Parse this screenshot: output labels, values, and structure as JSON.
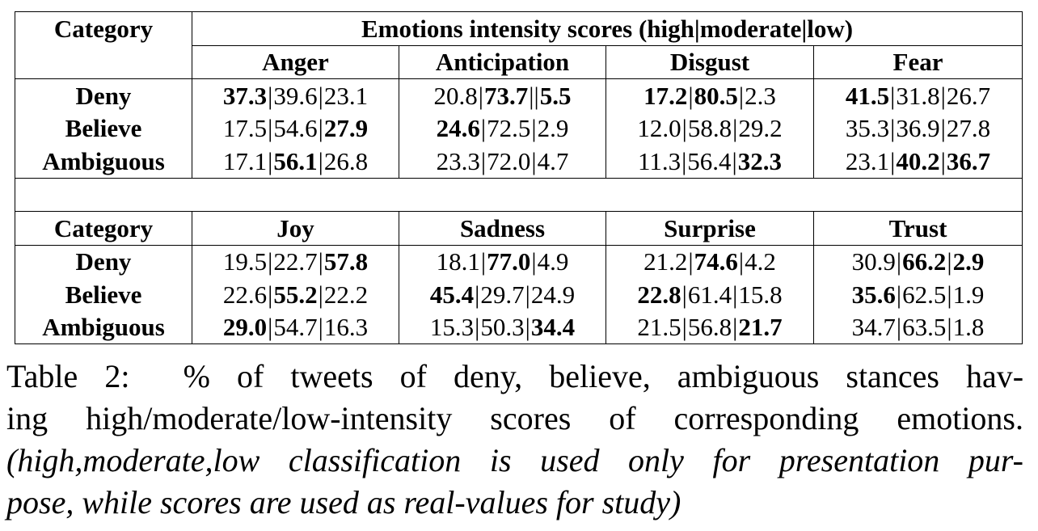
{
  "table": {
    "category_header": "Category",
    "super_header": "Emotions intensity scores (high|moderate|low)",
    "blocks": [
      {
        "emotions": [
          "Anger",
          "Anticipation",
          "Disgust",
          "Fear"
        ],
        "rows": [
          {
            "category": "Deny",
            "cells": [
              {
                "values": [
                  "37.3",
                  "39.6",
                  "23.1"
                ],
                "bold": [
                  true,
                  false,
                  false
                ],
                "seps": [
                  "|",
                  "|"
                ]
              },
              {
                "values": [
                  "20.8",
                  "73.7",
                  "5.5"
                ],
                "bold": [
                  false,
                  true,
                  true
                ],
                "seps": [
                  "|",
                  "||"
                ]
              },
              {
                "values": [
                  "17.2",
                  "80.5",
                  "2.3"
                ],
                "bold": [
                  true,
                  true,
                  false
                ],
                "seps": [
                  "|",
                  "|"
                ]
              },
              {
                "values": [
                  "41.5",
                  "31.8",
                  "26.7"
                ],
                "bold": [
                  true,
                  false,
                  false
                ],
                "seps": [
                  "|",
                  "|"
                ]
              }
            ]
          },
          {
            "category": "Believe",
            "cells": [
              {
                "values": [
                  "17.5",
                  "54.6",
                  "27.9"
                ],
                "bold": [
                  false,
                  false,
                  true
                ],
                "seps": [
                  "|",
                  "|"
                ]
              },
              {
                "values": [
                  "24.6",
                  "72.5",
                  "2.9"
                ],
                "bold": [
                  true,
                  false,
                  false
                ],
                "seps": [
                  "|",
                  "|"
                ]
              },
              {
                "values": [
                  "12.0",
                  "58.8",
                  "29.2"
                ],
                "bold": [
                  false,
                  false,
                  false
                ],
                "seps": [
                  "|",
                  "|"
                ]
              },
              {
                "values": [
                  "35.3",
                  "36.9",
                  "27.8"
                ],
                "bold": [
                  false,
                  false,
                  false
                ],
                "seps": [
                  "|",
                  "|"
                ]
              }
            ]
          },
          {
            "category": "Ambiguous",
            "cells": [
              {
                "values": [
                  "17.1",
                  "56.1",
                  "26.8"
                ],
                "bold": [
                  false,
                  true,
                  false
                ],
                "seps": [
                  "|",
                  "|"
                ]
              },
              {
                "values": [
                  "23.3",
                  "72.0",
                  "4.7"
                ],
                "bold": [
                  false,
                  false,
                  false
                ],
                "seps": [
                  "|",
                  "|"
                ]
              },
              {
                "values": [
                  "11.3",
                  "56.4",
                  "32.3"
                ],
                "bold": [
                  false,
                  false,
                  true
                ],
                "seps": [
                  "|",
                  "|"
                ]
              },
              {
                "values": [
                  "23.1",
                  "40.2",
                  "36.7"
                ],
                "bold": [
                  false,
                  true,
                  true
                ],
                "seps": [
                  "|",
                  "|"
                ]
              }
            ]
          }
        ]
      },
      {
        "emotions": [
          "Joy",
          "Sadness",
          "Surprise",
          "Trust"
        ],
        "rows": [
          {
            "category": "Deny",
            "cells": [
              {
                "values": [
                  "19.5",
                  "22.7",
                  "57.8"
                ],
                "bold": [
                  false,
                  false,
                  true
                ],
                "seps": [
                  "|",
                  "|"
                ]
              },
              {
                "values": [
                  "18.1",
                  "77.0",
                  "4.9"
                ],
                "bold": [
                  false,
                  true,
                  false
                ],
                "seps": [
                  "|",
                  "|"
                ]
              },
              {
                "values": [
                  "21.2",
                  "74.6",
                  "4.2"
                ],
                "bold": [
                  false,
                  true,
                  false
                ],
                "seps": [
                  "|",
                  "|"
                ]
              },
              {
                "values": [
                  "30.9",
                  "66.2",
                  "2.9"
                ],
                "bold": [
                  false,
                  true,
                  true
                ],
                "seps": [
                  "|",
                  "|"
                ]
              }
            ]
          },
          {
            "category": "Believe",
            "cells": [
              {
                "values": [
                  "22.6",
                  "55.2",
                  "22.2"
                ],
                "bold": [
                  false,
                  true,
                  false
                ],
                "seps": [
                  "|",
                  "|"
                ]
              },
              {
                "values": [
                  "45.4",
                  "29.7",
                  "24.9"
                ],
                "bold": [
                  true,
                  false,
                  false
                ],
                "seps": [
                  "|",
                  "|"
                ]
              },
              {
                "values": [
                  "22.8",
                  "61.4",
                  "15.8"
                ],
                "bold": [
                  true,
                  false,
                  false
                ],
                "seps": [
                  "|",
                  "|"
                ]
              },
              {
                "values": [
                  "35.6",
                  "62.5",
                  "1.9"
                ],
                "bold": [
                  true,
                  false,
                  false
                ],
                "seps": [
                  "|",
                  "|"
                ]
              }
            ]
          },
          {
            "category": "Ambiguous",
            "cells": [
              {
                "values": [
                  "29.0",
                  "54.7",
                  "16.3"
                ],
                "bold": [
                  true,
                  false,
                  false
                ],
                "seps": [
                  "|",
                  "|"
                ]
              },
              {
                "values": [
                  "15.3",
                  "50.3",
                  "34.4"
                ],
                "bold": [
                  false,
                  false,
                  true
                ],
                "seps": [
                  "|",
                  "|"
                ]
              },
              {
                "values": [
                  "21.5",
                  "56.8",
                  "21.7"
                ],
                "bold": [
                  false,
                  false,
                  true
                ],
                "seps": [
                  "|",
                  "|"
                ]
              },
              {
                "values": [
                  "34.7",
                  "63.5",
                  "1.8"
                ],
                "bold": [
                  false,
                  false,
                  false
                ],
                "seps": [
                  "|",
                  "|"
                ]
              }
            ]
          }
        ]
      }
    ]
  },
  "caption": {
    "label": "Table 2:",
    "line1": "% of tweets of deny, believe, ambiguous stances hav-",
    "line2": "ing high/moderate/low-intensity scores of corresponding emotions.",
    "line3": "(high,moderate,low classification is used only for presentation pur-",
    "line4": "pose, while scores are used as real-values for study)"
  }
}
